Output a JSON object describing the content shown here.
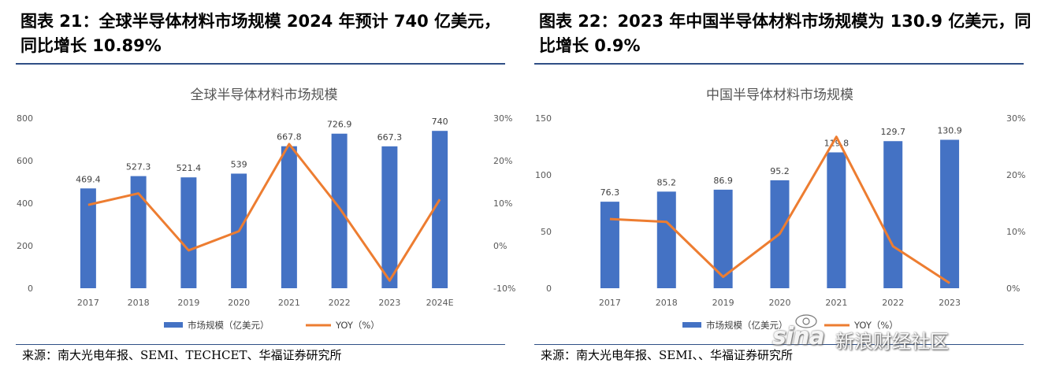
{
  "figures": [
    {
      "title": "图表 21：全球半导体材料市场规模 2024 年预计 740 亿美元，同比增长 10.89%",
      "source": "来源：南大光电年报、SEMI、TECHCET、华福证券研究所"
    },
    {
      "title": "图表 22：2023 年中国半导体材料市场规模为 130.9 亿美元，同比增长 0.9%",
      "source": "来源：南大光电年报、SEMI、、华福证券研究所"
    }
  ],
  "chart_data": [
    {
      "type": "bar",
      "title": "全球半导体材料市场规模",
      "categories": [
        "2017",
        "2018",
        "2019",
        "2020",
        "2021",
        "2022",
        "2023",
        "2024E"
      ],
      "series": [
        {
          "name": "市场规模（亿美元）",
          "type": "bar",
          "axis": "left",
          "values": [
            469.4,
            527.3,
            521.4,
            539,
            667.8,
            726.9,
            667.3,
            740
          ]
        },
        {
          "name": "YOY（%）",
          "type": "line",
          "axis": "right",
          "values": [
            9.6,
            12.3,
            -1.1,
            3.4,
            23.9,
            8.9,
            -8.2,
            10.89
          ]
        }
      ],
      "y_left": {
        "min": 0,
        "max": 800,
        "ticks": [
          "0",
          "200",
          "400",
          "600",
          "800"
        ]
      },
      "y_right": {
        "min": -10,
        "max": 30,
        "ticks": [
          "-10%",
          "0%",
          "10%",
          "20%",
          "30%"
        ]
      },
      "data_labels": [
        "469.4",
        "527.3",
        "521.4",
        "539",
        "667.8",
        "726.9",
        "667.3",
        "740"
      ],
      "legend_position": "bottom",
      "grid": false
    },
    {
      "type": "bar",
      "title": "中国半导体材料市场规模",
      "categories": [
        "2017",
        "2018",
        "2019",
        "2020",
        "2021",
        "2022",
        "2023"
      ],
      "series": [
        {
          "name": "市场规模（亿美元）",
          "type": "bar",
          "axis": "left",
          "values": [
            76.3,
            85.2,
            86.9,
            95.2,
            119.8,
            129.7,
            130.9
          ]
        },
        {
          "name": "YOY（%）",
          "type": "line",
          "axis": "right",
          "values": [
            12.2,
            11.7,
            2.0,
            9.6,
            26.7,
            7.4,
            0.9
          ]
        }
      ],
      "y_left": {
        "min": 0,
        "max": 150,
        "ticks": [
          "0",
          "50",
          "100",
          "150"
        ]
      },
      "y_right": {
        "min": 0,
        "max": 30,
        "ticks": [
          "0%",
          "10%",
          "20%",
          "30%"
        ]
      },
      "data_labels": [
        "76.3",
        "85.2",
        "86.9",
        "95.2",
        "119.8",
        "129.7",
        "130.9"
      ],
      "legend_position": "bottom",
      "grid": false
    }
  ],
  "colors": {
    "bar": "#4472C4",
    "line": "#ED7D31",
    "rule": "#2f4f86"
  },
  "watermark": {
    "logo": "sina",
    "text": "新浪财经社区"
  }
}
